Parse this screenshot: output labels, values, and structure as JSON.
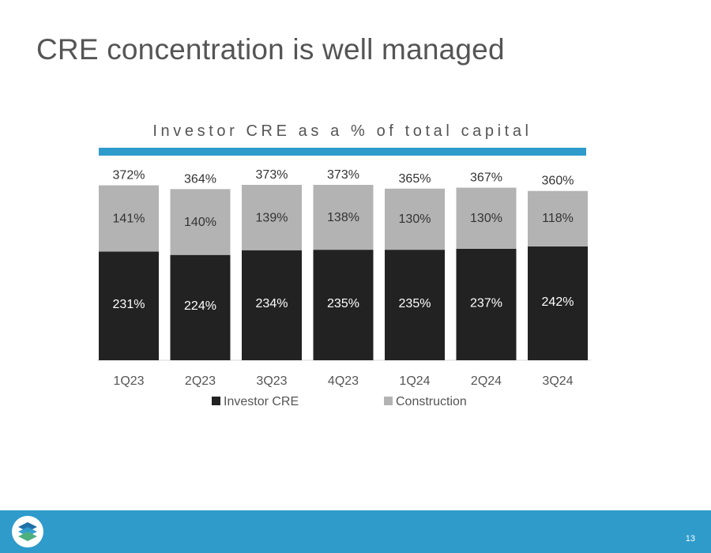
{
  "slide": {
    "title": "CRE concentration is well managed",
    "page_number": "13"
  },
  "colors": {
    "accent": "#2E9BCB",
    "footer": "#2E9BCB",
    "investor_cre": "#222222",
    "construction": "#B3B3B3",
    "text": "#555555"
  },
  "icons": {
    "logo": "layered-stack-logo-icon"
  },
  "chart_data": {
    "type": "bar",
    "stacked": true,
    "title": "Investor CRE as a % of total capital",
    "categories": [
      "1Q23",
      "2Q23",
      "3Q23",
      "4Q23",
      "1Q24",
      "2Q24",
      "3Q24"
    ],
    "series": [
      {
        "name": "Investor CRE",
        "values": [
          231,
          224,
          234,
          235,
          235,
          237,
          242
        ],
        "labels": [
          "231%",
          "224%",
          "234%",
          "235%",
          "235%",
          "237%",
          "242%"
        ]
      },
      {
        "name": "Construction",
        "values": [
          141,
          140,
          139,
          138,
          130,
          130,
          118
        ],
        "labels": [
          "141%",
          "140%",
          "139%",
          "138%",
          "130%",
          "130%",
          "118%"
        ]
      }
    ],
    "totals": [
      372,
      364,
      373,
      373,
      365,
      367,
      360
    ],
    "total_labels": [
      "372%",
      "364%",
      "373%",
      "373%",
      "365%",
      "367%",
      "360%"
    ],
    "xlabel": "",
    "ylabel": "",
    "ylim": [
      0,
      373
    ],
    "grid": false,
    "legend_position": "bottom"
  }
}
